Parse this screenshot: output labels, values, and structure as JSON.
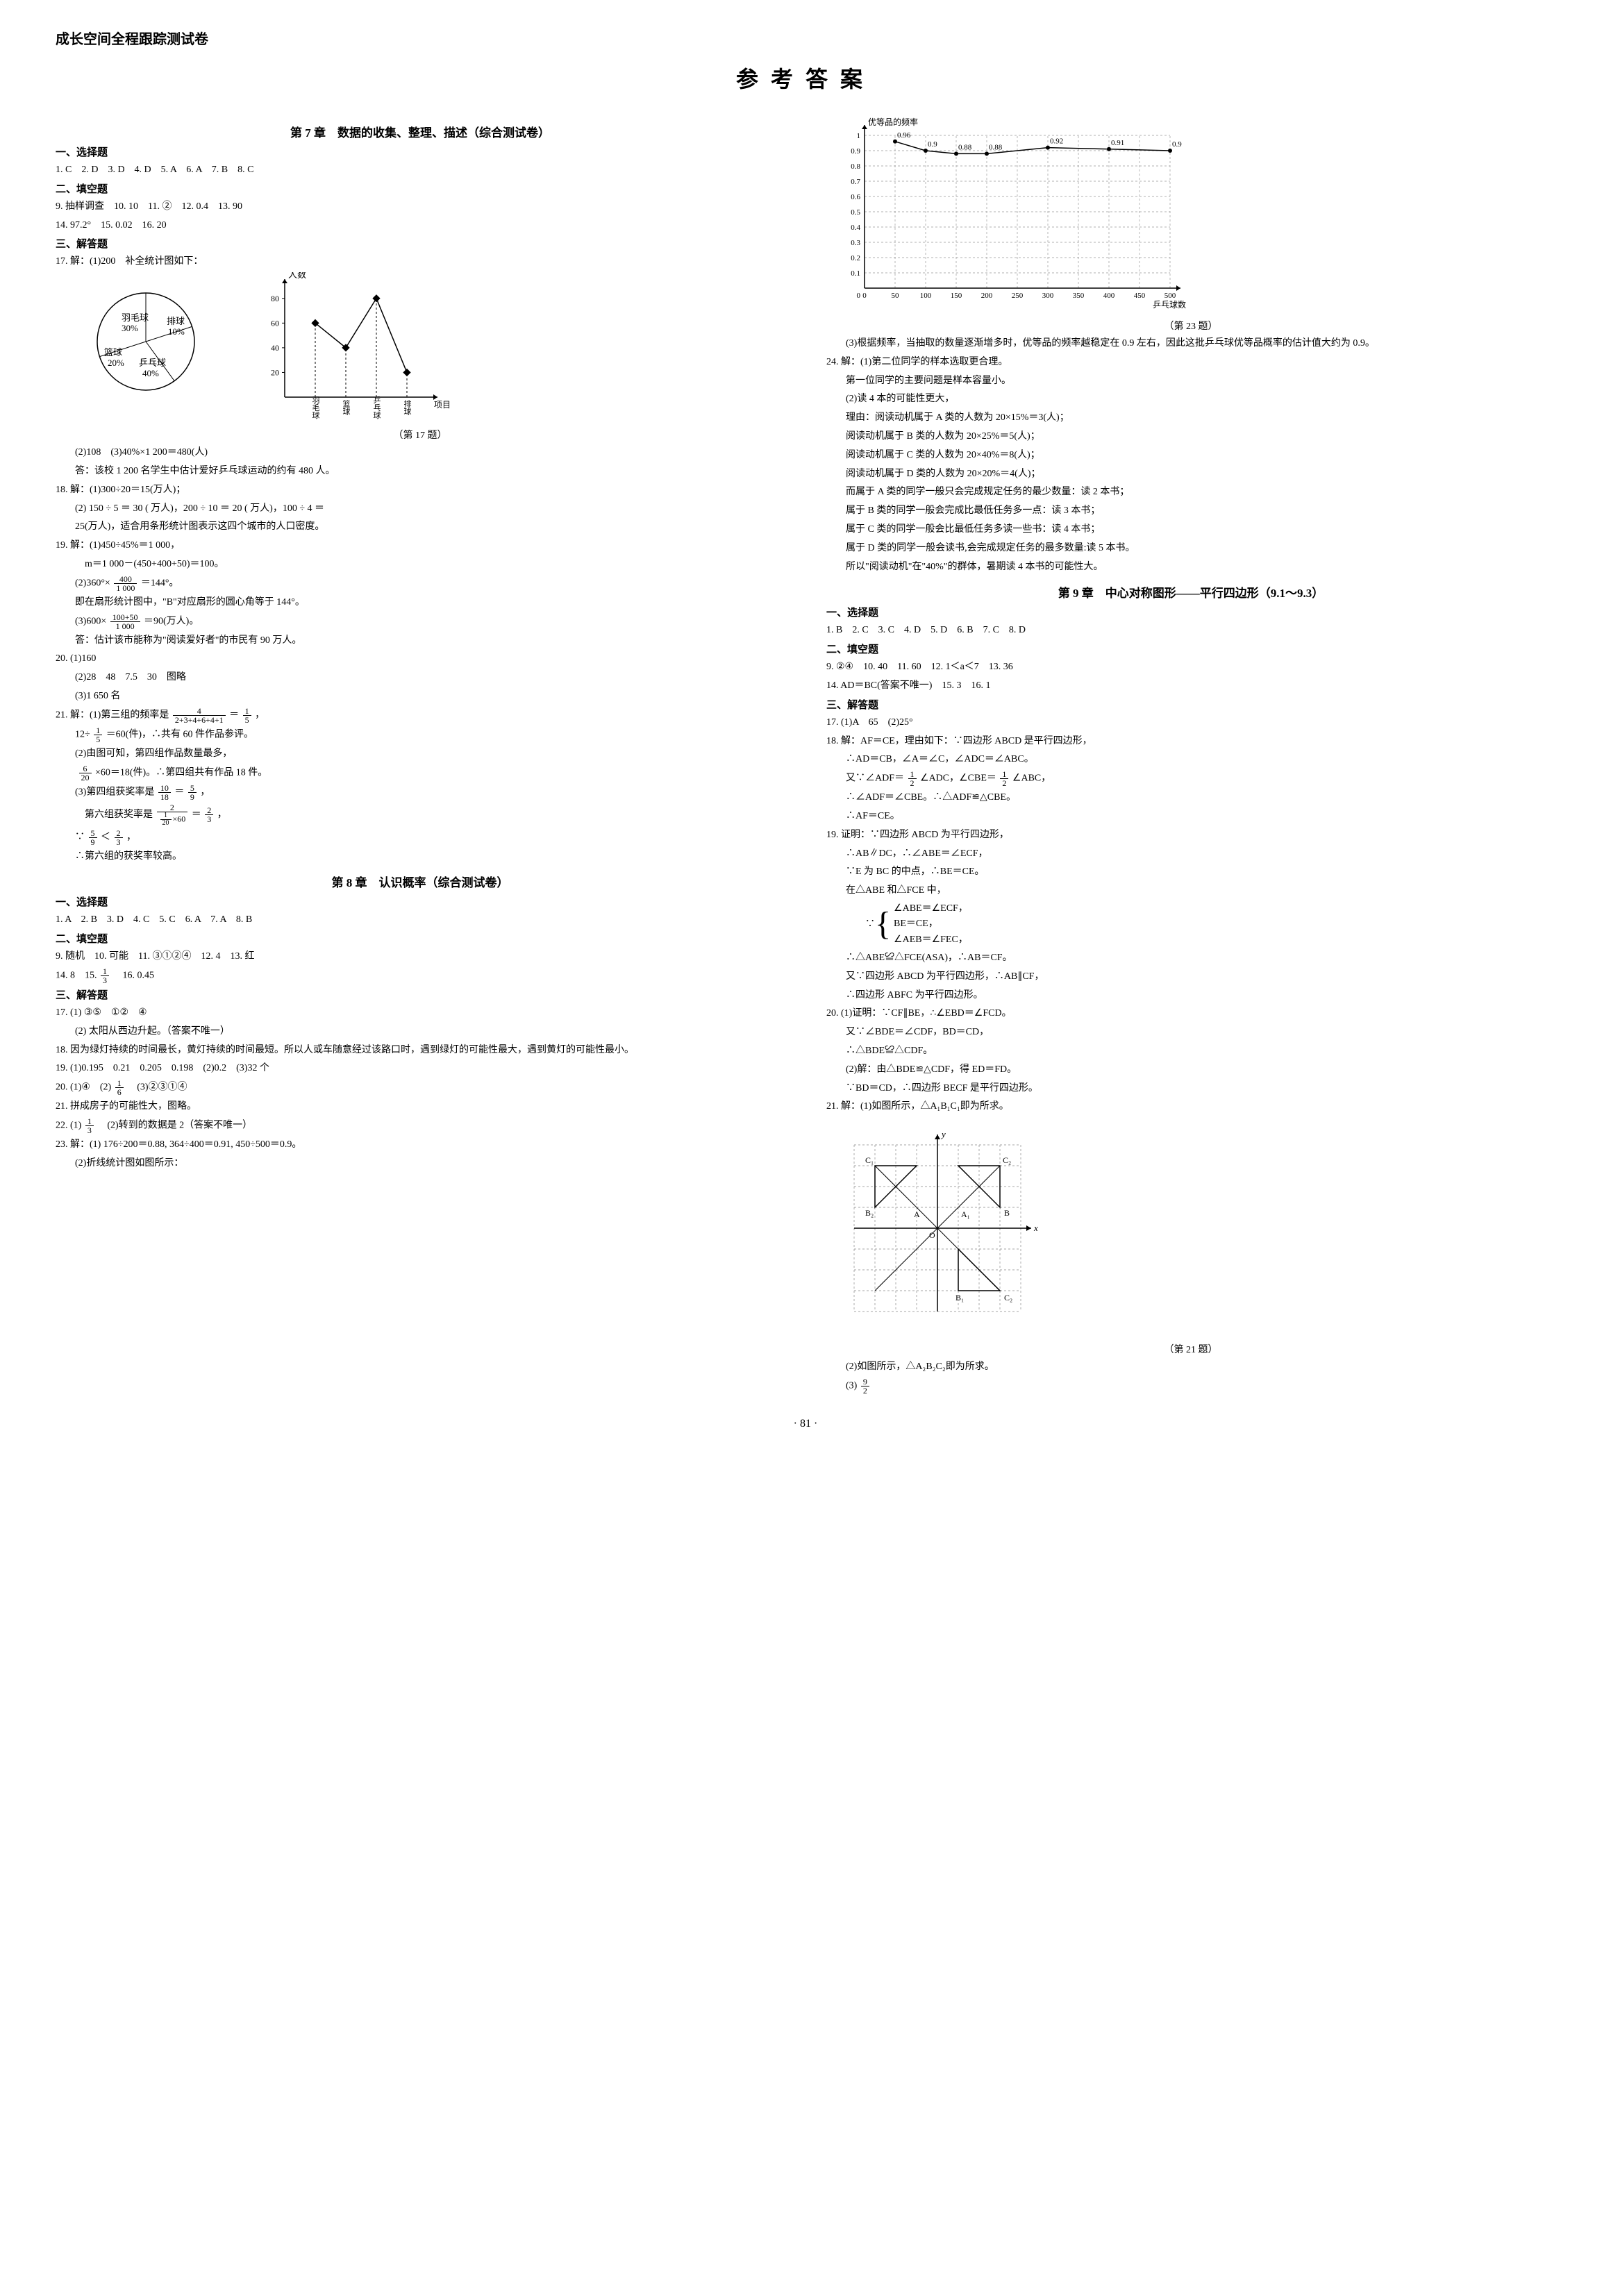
{
  "header": "成长空间全程跟踪测试卷",
  "main_title": "参考答案",
  "page_number": "· 81 ·",
  "left": {
    "ch7": {
      "title": "第 7 章　数据的收集、整理、描述（综合测试卷）",
      "sec1_label": "一、选择题",
      "sec1": "1. C　2. D　3. D　4. D　5. A　6. A　7. B　8. C",
      "sec2_label": "二、填空题",
      "sec2a": "9. 抽样调查　10. 10　11. ②　12. 0.4　13. 90",
      "sec2b": "14. 97.2°　15. 0.02　16. 20",
      "sec3_label": "三、解答题",
      "q17a": "17. 解：(1)200　补全统计图如下：",
      "pie": {
        "title": "（第 17 题）",
        "labels": [
          "羽毛球",
          "排球",
          "篮球",
          "乒乓球"
        ],
        "percents": [
          "30%",
          "10%",
          "20%",
          "40%"
        ],
        "colors": [
          "#ffffff",
          "#ffffff",
          "#ffffff",
          "#ffffff"
        ],
        "border": "#000000"
      },
      "bar17": {
        "ylabel": "人数",
        "yticks": [
          20,
          40,
          60,
          80
        ],
        "ymax": 90,
        "categories": [
          "羽毛球",
          "篮球",
          "乒乓球",
          "排球"
        ],
        "xlabel_suffix": "项目",
        "values": [
          60,
          40,
          80,
          20
        ],
        "line_color": "#000000",
        "marker": "diamond"
      },
      "q17b": "　　(2)108　(3)40%×1 200＝480(人)",
      "q17c": "　　答：该校 1 200 名学生中估计爱好乒乓球运动的约有 480 人。",
      "q18a": "18. 解：(1)300÷20＝15(万人)；",
      "q18b": "　　(2) 150 ÷ 5 ＝ 30 ( 万人)，200 ÷ 10 ＝ 20 ( 万人)，100 ÷ 4 ＝",
      "q18c": "　　25(万人)，适合用条形统计图表示这四个城市的人口密度。",
      "q19a": "19. 解：(1)450÷45%＝1 000，",
      "q19b": "　　　m＝1 000－(450+400+50)＝100。",
      "q19c_pre": "　　(2)360°×",
      "q19c_num": "400",
      "q19c_den": "1 000",
      "q19c_post": "＝144°。",
      "q19d": "　　即在扇形统计图中，\"B\"对应扇形的圆心角等于 144°。",
      "q19e_pre": "　　(3)600×",
      "q19e_num": "100+50",
      "q19e_den": "1 000",
      "q19e_post": "＝90(万人)。",
      "q19f": "　　答：估计该市能称为\"阅读爱好者\"的市民有 90 万人。",
      "q20a": "20. (1)160",
      "q20b": "　　(2)28　48　7.5　30　图略",
      "q20c": "　　(3)1 650 名",
      "q21a_pre": "21. 解：(1)第三组的频率是",
      "q21a_n1": "4",
      "q21a_d1": "2+3+4+6+4+1",
      "q21a_mid": "＝",
      "q21a_n2": "1",
      "q21a_d2": "5",
      "q21a_post": "，",
      "q21b_pre": "　　12÷",
      "q21b_n": "1",
      "q21b_d": "5",
      "q21b_post": "＝60(件)，∴共有 60 件作品参评。",
      "q21c": "　　(2)由图可知，第四组作品数量最多，",
      "q21d_pre": "　　",
      "q21d_n": "6",
      "q21d_d": "20",
      "q21d_post": "×60＝18(件)。∴第四组共有作品 18 件。",
      "q21e_pre": "　　(3)第四组获奖率是",
      "q21e_n": "10",
      "q21e_d": "18",
      "q21e_mid": "＝",
      "q21e_n2": "5",
      "q21e_d2": "9",
      "q21e_post": "，",
      "q21f_pre": "　　　第六组获奖率是",
      "q21f_n": "2",
      "q21f_d1a": "1",
      "q21f_d1b": "20",
      "q21f_d1c": "×60",
      "q21f_mid": "＝",
      "q21f_n2": "2",
      "q21f_d2": "3",
      "q21f_post": "，",
      "q21g_pre": "　　∵",
      "q21g_n1": "5",
      "q21g_d1": "9",
      "q21g_lt": "＜",
      "q21g_n2": "2",
      "q21g_d2": "3",
      "q21g_post": "，",
      "q21h": "　　∴第六组的获奖率较高。"
    },
    "ch8": {
      "title": "第 8 章　认识概率（综合测试卷）",
      "sec1_label": "一、选择题",
      "sec1": "1. A　2. B　3. D　4. C　5. C　6. A　7. A　8. B",
      "sec2_label": "二、填空题",
      "sec2a": "9. 随机　10. 可能　11. ③①②④　12. 4　13. 红",
      "sec2b_pre": "14. 8　15. ",
      "sec2b_n": "1",
      "sec2b_d": "3",
      "sec2b_post": "　16. 0.45",
      "sec3_label": "三、解答题",
      "q17a": "17. (1) ③⑤　①②　④",
      "q17b": "　　(2) 太阳从西边升起。（答案不唯一）",
      "q18": "18. 因为绿灯持续的时间最长，黄灯持续的时间最短。所以人或车随意经过该路口时，遇到绿灯的可能性最大，遇到黄灯的可能性最小。",
      "q19": "19. (1)0.195　0.21　0.205　0.198　(2)0.2　(3)32 个",
      "q20_pre": "20. (1)④　(2)",
      "q20_n": "1",
      "q20_d": "6",
      "q20_post": "　(3)②③①④",
      "q21": "21. 拼成房子的可能性大，图略。",
      "q22_pre": "22. (1)",
      "q22_n": "1",
      "q22_d": "3",
      "q22_post": "　(2)转到的数据是 2（答案不唯一）",
      "q23a": "23. 解：(1) 176÷200＝0.88, 364÷400＝0.91, 450÷500＝0.9。",
      "q23b": "　　(2)折线统计图如图所示："
    }
  },
  "right": {
    "chart23": {
      "title": "（第 23 题）",
      "ylabel": "优等品的频率",
      "xlabel": "乒乓球数",
      "yticks": [
        0.1,
        0.2,
        0.3,
        0.4,
        0.5,
        0.6,
        0.7,
        0.8,
        0.9,
        1.0
      ],
      "xticks": [
        0,
        50,
        100,
        150,
        200,
        250,
        300,
        350,
        400,
        450,
        500
      ],
      "points_x": [
        50,
        100,
        150,
        200,
        300,
        400,
        500
      ],
      "points_y": [
        0.96,
        0.9,
        0.88,
        0.88,
        0.92,
        0.91,
        0.9
      ],
      "labels": [
        "0.96",
        "0.9",
        "0.88",
        "0.88",
        "0.92",
        "0.91",
        "0.9"
      ],
      "line_color": "#000000",
      "grid_color": "#999999",
      "background": "#ffffff"
    },
    "q23c": "　　(3)根据频率，当抽取的数量逐渐增多时，优等品的频率越稳定在 0.9 左右，因此这批乒乓球优等品概率的估计值大约为 0.9。",
    "q24a": "24. 解：(1)第二位同学的样本选取更合理。",
    "q24b": "　　第一位同学的主要问题是样本容量小。",
    "q24c": "　　(2)读 4 本的可能性更大，",
    "q24d": "　　理由：阅读动机属于 A 类的人数为 20×15%＝3(人)；",
    "q24e": "　　阅读动机属于 B 类的人数为 20×25%＝5(人)；",
    "q24f": "　　阅读动机属于 C 类的人数为 20×40%＝8(人)；",
    "q24g": "　　阅读动机属于 D 类的人数为 20×20%＝4(人)；",
    "q24h": "　　而属于 A 类的同学一般只会完成规定任务的最少数量：读 2 本书；",
    "q24i": "　　属于 B 类的同学一般会完成比最低任务多一点：读 3 本书；",
    "q24j": "　　属于 C 类的同学一般会比最低任务多读一些书：读 4 本书；",
    "q24k": "　　属于 D 类的同学一般会读书,会完成规定任务的最多数量:读 5 本书。",
    "q24l": "　　所以\"阅读动机\"在\"40%\"的群体，暑期读 4 本书的可能性大。",
    "ch9": {
      "title": "第 9 章　中心对称图形——平行四边形（9.1～9.3）",
      "sec1_label": "一、选择题",
      "sec1": "1. B　2. C　3. C　4. D　5. D　6. B　7. C　8. D",
      "sec2_label": "二、填空题",
      "sec2a": "9. ②④　10. 40　11. 60　12. 1＜a＜7　13. 36",
      "sec2b": "14. AD＝BC(答案不唯一)　15. 3　16. 1",
      "sec3_label": "三、解答题",
      "q17": "17. (1)A　65　(2)25°",
      "q18a": "18. 解：AF＝CE，理由如下：∵四边形 ABCD 是平行四边形，",
      "q18b": "　　∴AD＝CB，∠A＝∠C，∠ADC＝∠ABC。",
      "q18c_pre": "　　又∵∠ADF＝",
      "q18c_n": "1",
      "q18c_d": "2",
      "q18c_mid": "∠ADC，∠CBE＝",
      "q18c_n2": "1",
      "q18c_d2": "2",
      "q18c_post": "∠ABC，",
      "q18d": "　　∴∠ADF＝∠CBE。∴△ADF≌△CBE。",
      "q18e": "　　∴AF＝CE。",
      "q19a": "19. 证明：∵四边形 ABCD 为平行四边形，",
      "q19b": "　　∴AB∥DC，∴∠ABE＝∠ECF，",
      "q19c": "　　∵E 为 BC 的中点，∴BE＝CE。",
      "q19d": "　　在△ABE 和△FCE 中，",
      "q19brace1": "∠ABE＝∠ECF，",
      "q19brace2": "BE＝CE，",
      "q19brace3": "∠AEB＝∠FEC，",
      "q19e": "　　∴△ABE≌△FCE(ASA)，∴AB＝CF。",
      "q19f": "　　又∵四边形 ABCD 为平行四边形，∴AB∥CF，",
      "q19g": "　　∴四边形 ABFC 为平行四边形。",
      "q20a": "20. (1)证明：∵CF∥BE，∴∠EBD＝∠FCD。",
      "q20b": "　　又∵∠BDE＝∠CDF，BD＝CD，",
      "q20c": "　　∴△BDE≌△CDF。",
      "q20d": "　　(2)解：由△BDE≌△CDF，得 ED＝FD。",
      "q20e": "　　∵BD＝CD，∴四边形 BECF 是平行四边形。",
      "q21a": "21. 解：(1)如图所示，△A₁B₁C₁即为所求。",
      "grid21": {
        "title": "（第 21 题）",
        "size": 8,
        "x_axis_label": "x",
        "y_axis_label": "y",
        "origin_label": "O",
        "tri1": {
          "pts": [
            [
              1,
              1
            ],
            [
              1,
              3
            ],
            [
              3,
              1
            ]
          ],
          "labels": [
            "A₁",
            "",
            "B₁"
          ],
          "color": "#000"
        },
        "tri2": {
          "pts": [
            [
              -3,
              1
            ],
            [
              -3,
              3
            ],
            [
              -1,
              3
            ]
          ],
          "labels": [
            "B₂",
            "C₂",
            ""
          ],
          "color": "#000"
        },
        "tri1b": {
          "pts": [
            [
              1,
              -2
            ],
            [
              3,
              -4
            ],
            [
              1,
              -4
            ]
          ],
          "labels": [
            "",
            "C₂",
            "B₂"
          ],
          "color": "#000"
        },
        "tri_orig": {
          "pts": [
            [
              -1,
              1
            ],
            [
              -3,
              3
            ],
            [
              -3,
              1
            ]
          ],
          "labels": [
            "A",
            "C₁",
            "B₁"
          ],
          "color": "#000"
        },
        "point_labels": [
          "C₁",
          "C₂",
          "B₂",
          "A",
          "O",
          "A₁",
          "B₁",
          "B",
          "C₂",
          "B₂"
        ],
        "grid_color": "#888888"
      },
      "q21b": "　　(2)如图所示，△A₂B₂C₂即为所求。",
      "q21c_pre": "　　(3)",
      "q21c_n": "9",
      "q21c_d": "2"
    }
  }
}
